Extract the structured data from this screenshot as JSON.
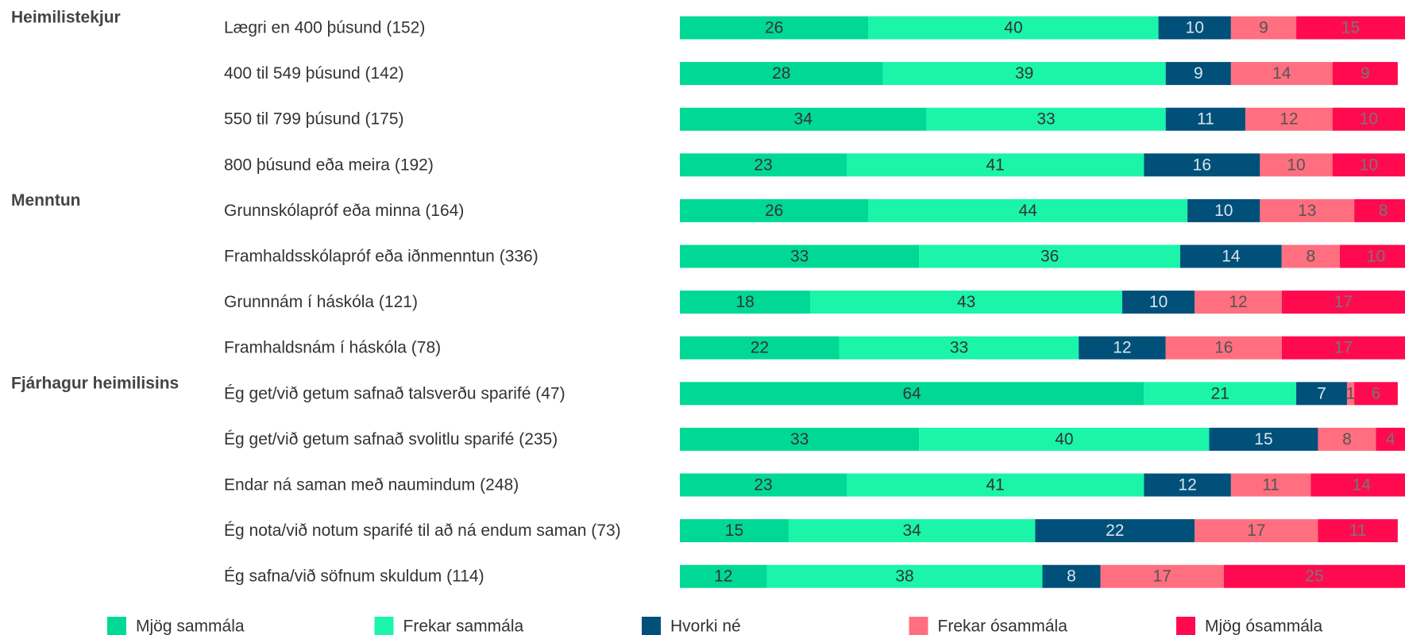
{
  "chart_data": {
    "type": "stacked-bar-horizontal",
    "groups": [
      {
        "name": "Heimilistekjur",
        "categories": [
          "Lægri en 400 þúsund (152)",
          "400 til 549 þúsund (142)",
          "550 til 799 þúsund (175)",
          "800 þúsund eða meira (192)"
        ]
      },
      {
        "name": "Menntun",
        "categories": [
          "Grunnskólapróf eða minna (164)",
          "Framhaldsskólapróf eða iðnmenntun (336)",
          "Grunnnám í háskóla (121)",
          "Framhaldsnám í háskóla (78)"
        ]
      },
      {
        "name": "Fjárhagur heimilisins",
        "categories": [
          "Ég get/við getum safnað talsverðu sparifé (47)",
          "Ég get/við getum safnað svolitlu sparifé (235)",
          "Endar ná saman með naumindum (248)",
          "Ég nota/við notum sparifé til að ná endum saman (73)",
          "Ég safna/við söfnum skuldum (114)"
        ]
      }
    ],
    "xlim": [
      0,
      100
    ],
    "series": [
      {
        "name": "Mjög sammála",
        "color": "#00d896",
        "values": [
          26,
          28,
          34,
          23,
          26,
          33,
          18,
          22,
          64,
          33,
          23,
          15,
          12
        ]
      },
      {
        "name": "Frekar sammála",
        "color": "#1af5a9",
        "values": [
          40,
          39,
          33,
          41,
          44,
          36,
          43,
          33,
          21,
          40,
          41,
          34,
          38
        ]
      },
      {
        "name": "Hvorki né",
        "color": "#00507a",
        "values": [
          10,
          9,
          11,
          16,
          10,
          14,
          10,
          12,
          7,
          15,
          12,
          22,
          8
        ]
      },
      {
        "name": "Frekar ósammála",
        "color": "#ff6f80",
        "values": [
          9,
          14,
          12,
          10,
          13,
          8,
          12,
          16,
          1,
          8,
          11,
          17,
          17
        ]
      },
      {
        "name": "Mjög ósammála",
        "color": "#ff0a4f",
        "values": [
          15,
          9,
          10,
          10,
          8,
          10,
          17,
          17,
          6,
          4,
          14,
          11,
          25
        ]
      }
    ]
  }
}
